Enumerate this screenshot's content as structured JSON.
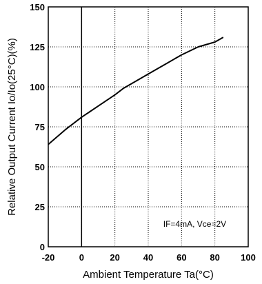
{
  "chart_data": {
    "type": "line",
    "xlabel": "Ambient Temperature Ta(°C)",
    "ylabel": "Relative Output Current Io/Io(25°C)(%)",
    "xlim": [
      -20,
      100
    ],
    "ylim": [
      0,
      150
    ],
    "xticks": [
      -20,
      0,
      20,
      40,
      60,
      80,
      100
    ],
    "yticks": [
      0,
      25,
      50,
      75,
      100,
      125,
      150
    ],
    "grid": true,
    "annotation": "IF=4mA, Vce=2V",
    "series": [
      {
        "x": [
          -20,
          -10,
          0,
          10,
          20,
          25,
          30,
          40,
          50,
          60,
          70,
          80,
          85
        ],
        "y": [
          64,
          73,
          81,
          88,
          95,
          99,
          102,
          108,
          114,
          120,
          125,
          128,
          131
        ]
      }
    ]
  }
}
